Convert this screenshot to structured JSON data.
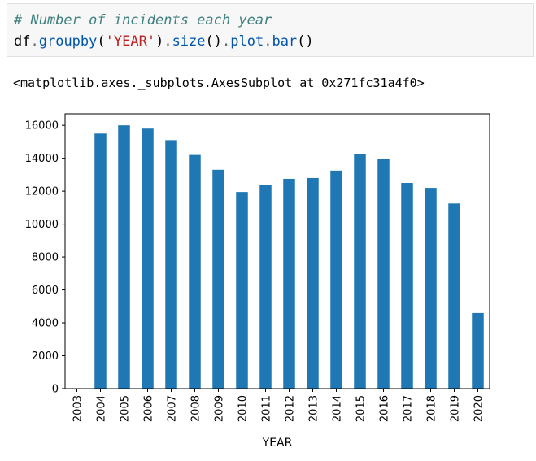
{
  "code": {
    "comment": "# Number of incidents each year",
    "line2": {
      "df": "df",
      "dot1": ".",
      "groupby": "groupby",
      "paren_open": "(",
      "arg": "'YEAR'",
      "paren_close": ")",
      "dot2": ".",
      "size": "size",
      "parens1": "()",
      "dot3": ".",
      "plot": "plot",
      "dot4": ".",
      "bar": "bar",
      "parens2": "()"
    }
  },
  "output": {
    "text": "<matplotlib.axes._subplots.AxesSubplot at 0x271fc31a4f0>"
  },
  "colors": {
    "bar": "#1f77b4"
  },
  "chart_data": {
    "type": "bar",
    "categories": [
      "2003",
      "2004",
      "2005",
      "2006",
      "2007",
      "2008",
      "2009",
      "2010",
      "2011",
      "2012",
      "2013",
      "2014",
      "2015",
      "2016",
      "2017",
      "2018",
      "2019",
      "2020"
    ],
    "values": [
      0,
      15500,
      16000,
      15800,
      15100,
      14200,
      13300,
      11950,
      12400,
      12750,
      12800,
      13250,
      14250,
      13950,
      12500,
      12200,
      11250,
      4600
    ],
    "xlabel": "YEAR",
    "ylabel": "",
    "ylim": [
      0,
      16700
    ],
    "yticks": [
      0,
      2000,
      4000,
      6000,
      8000,
      10000,
      12000,
      14000,
      16000
    ],
    "grid": false
  }
}
